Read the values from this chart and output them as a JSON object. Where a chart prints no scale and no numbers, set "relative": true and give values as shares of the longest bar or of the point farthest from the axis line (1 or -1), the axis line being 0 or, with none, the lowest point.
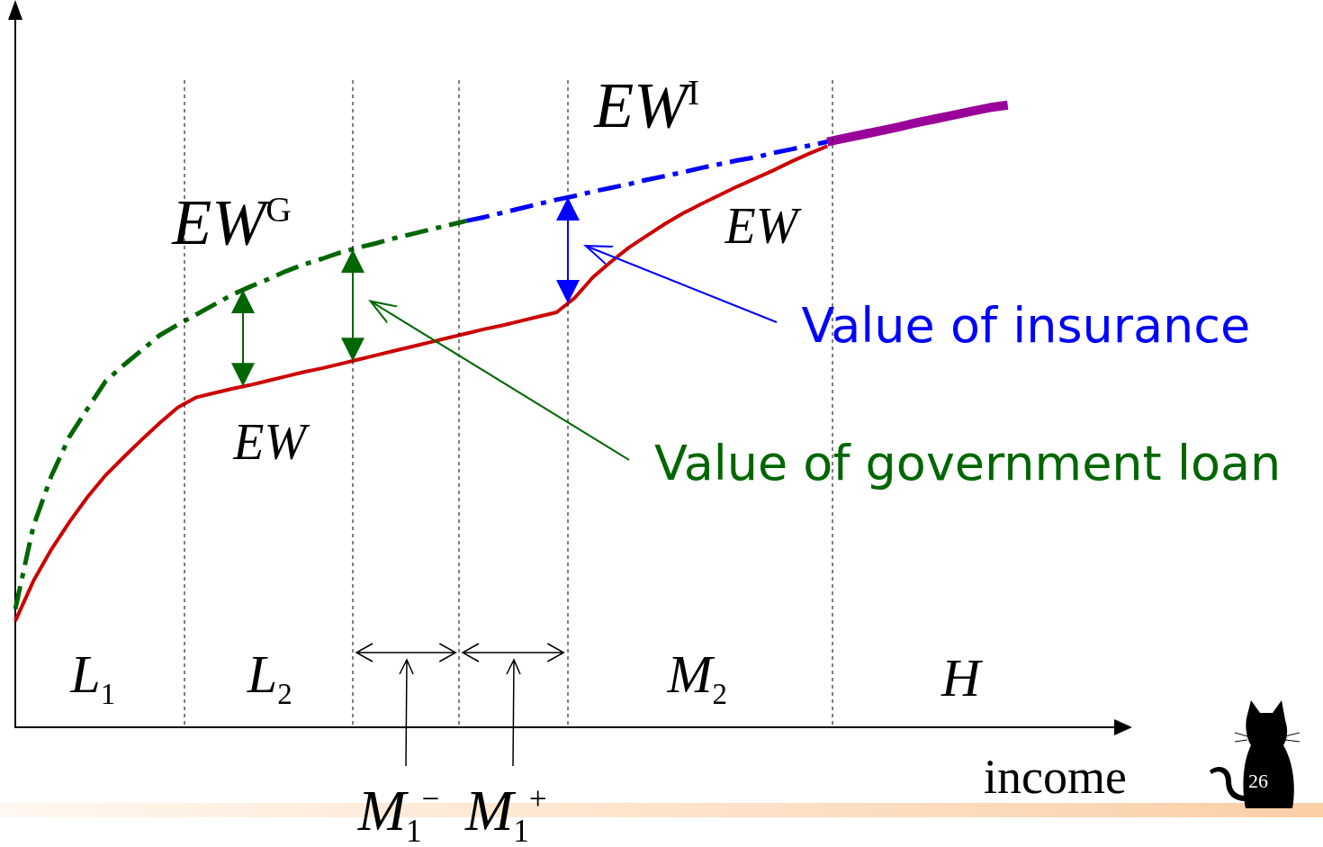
{
  "chart_data": {
    "type": "line",
    "relative": true,
    "xlabel": "income",
    "marker": "none",
    "legend": false,
    "grid": false,
    "categories": [
      null,
      null,
      null,
      null,
      null,
      null,
      null,
      null,
      null,
      null,
      null,
      null,
      null,
      null,
      null,
      null,
      null,
      null,
      null,
      null,
      null,
      null,
      null,
      null,
      null,
      null,
      null,
      null,
      null,
      null,
      null,
      null,
      null,
      null,
      null,
      null,
      null,
      null,
      null,
      null,
      null,
      null,
      null,
      null,
      null,
      null,
      null,
      null,
      null,
      null,
      null,
      null,
      null,
      null,
      null,
      null,
      null,
      null,
      null,
      null,
      null,
      null
    ],
    "series": [
      {
        "color": "#cc0000",
        "line_style": "solid",
        "values": [
          0.171,
          0.235,
          0.286,
          0.33,
          0.37,
          0.405,
          0.434,
          0.462,
          0.489,
          0.514,
          0.53,
          0.537,
          0.544,
          0.55,
          0.557,
          0.564,
          0.571,
          0.577,
          0.584,
          0.591,
          0.598,
          0.605,
          0.612,
          0.619,
          0.626,
          0.633,
          0.64,
          0.646,
          0.653,
          0.66,
          0.667,
          0.69,
          0.723,
          0.748,
          0.771,
          0.79,
          0.809,
          0.826,
          0.841,
          0.855,
          0.869,
          0.882,
          0.895,
          0.909,
          0.922,
          0.934,
          null,
          null,
          null,
          null,
          null,
          null,
          null,
          null,
          null,
          null,
          null,
          null,
          null,
          null,
          null,
          null
        ]
      },
      {
        "color": "#006600",
        "line_style": "dashed",
        "values": [
          0.19,
          0.323,
          0.404,
          0.467,
          0.512,
          0.556,
          0.582,
          0.606,
          0.63,
          0.647,
          0.663,
          0.679,
          0.695,
          0.708,
          0.72,
          0.733,
          0.744,
          0.753,
          0.763,
          0.771,
          0.778,
          0.786,
          0.793,
          0.8,
          0.807,
          0.814,
          null,
          null,
          null,
          null,
          null,
          null,
          null,
          null,
          null,
          null,
          null,
          null,
          null,
          null,
          null,
          null,
          null,
          null,
          null,
          null,
          null,
          null,
          null,
          null,
          null,
          null,
          null,
          null,
          null,
          null,
          null,
          null,
          null,
          null,
          null,
          null
        ]
      },
      {
        "color": "#0000ff",
        "line_style": "dashed",
        "values": [
          null,
          null,
          null,
          null,
          null,
          null,
          null,
          null,
          null,
          null,
          null,
          null,
          null,
          null,
          null,
          null,
          null,
          null,
          null,
          null,
          null,
          null,
          null,
          null,
          null,
          0.814,
          0.82,
          0.827,
          0.834,
          0.841,
          0.848,
          0.854,
          0.861,
          0.867,
          0.873,
          0.88,
          0.886,
          0.892,
          0.899,
          0.905,
          0.911,
          0.916,
          0.923,
          0.929,
          0.935,
          0.941,
          null,
          null,
          null,
          null,
          null,
          null,
          null,
          null,
          null,
          null,
          null,
          null,
          null,
          null,
          null,
          null
        ]
      },
      {
        "color": "#990099",
        "line_style": "solid",
        "values": [
          null,
          null,
          null,
          null,
          null,
          null,
          null,
          null,
          null,
          null,
          null,
          null,
          null,
          null,
          null,
          null,
          null,
          null,
          null,
          null,
          null,
          null,
          null,
          null,
          null,
          null,
          null,
          null,
          null,
          null,
          null,
          null,
          null,
          null,
          null,
          null,
          null,
          null,
          null,
          null,
          null,
          null,
          null,
          null,
          null,
          0.941,
          0.947,
          0.953,
          0.959,
          0.965,
          0.972,
          0.978,
          0.984,
          0.99,
          0.996,
          1.0,
          null,
          null,
          null,
          null,
          null,
          null
        ]
      }
    ],
    "annotations": [
      "EW$^{G}$",
      "EW$^{I}$",
      "EW",
      "EW",
      "L$_{1}$",
      "L$_{2}$",
      "M$_{2}$",
      "H",
      "Value of insurance",
      "Value of government loan",
      "M$_{1}$$^{−}$",
      "M$_{1}$$^{+}$",
      "26"
    ]
  }
}
